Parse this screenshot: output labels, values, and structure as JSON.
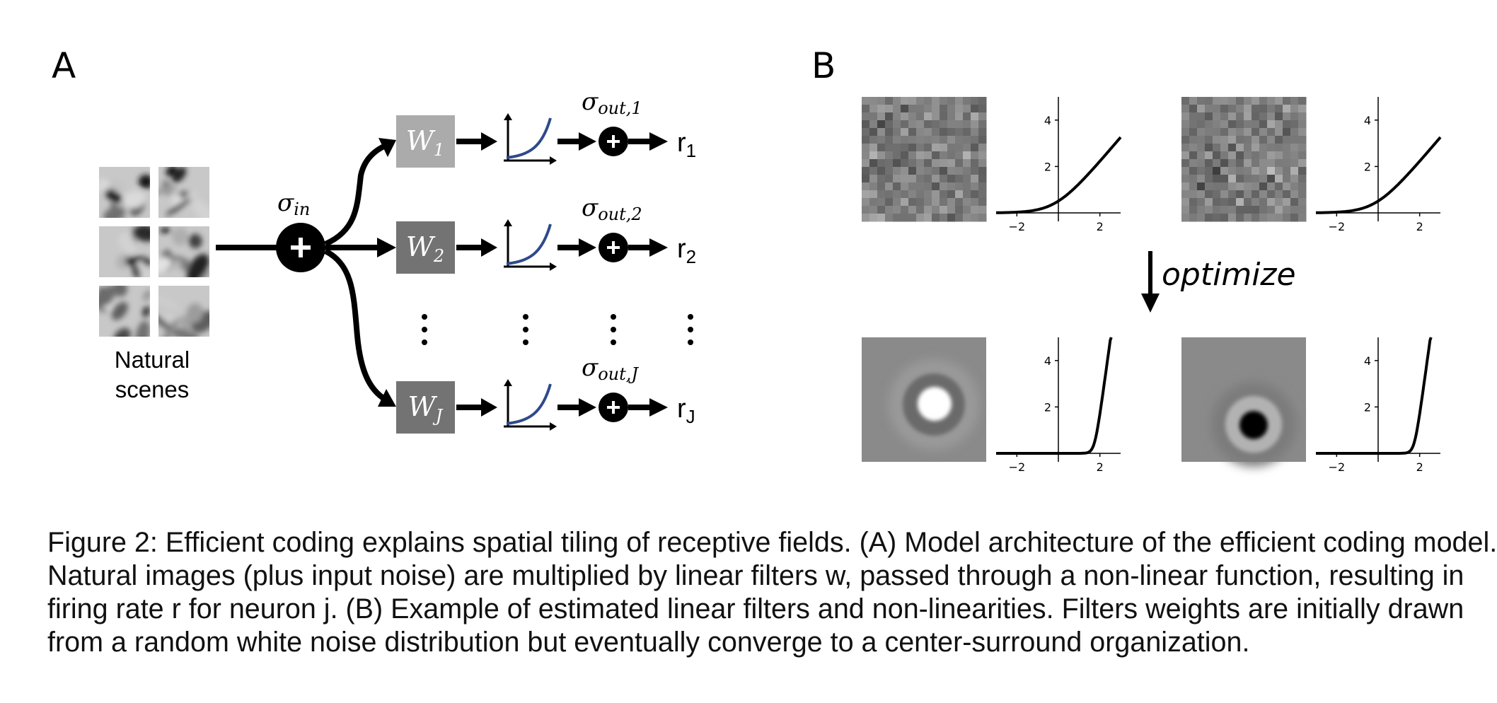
{
  "panel_a": {
    "letter": "A",
    "input_label_line1": "Natural",
    "input_label_line2": "scenes",
    "sigma_in": {
      "base": "σ",
      "sub": "in"
    },
    "plus_symbol": "+",
    "ellipsis": "⋮",
    "rows": [
      {
        "filter": {
          "base": "W",
          "sub": "1"
        },
        "sigma_out": {
          "base": "σ",
          "sub": "out,1"
        },
        "output": {
          "base": "r",
          "sub": "1"
        },
        "filter_color": "#ababab"
      },
      {
        "filter": {
          "base": "W",
          "sub": "2"
        },
        "sigma_out": {
          "base": "σ",
          "sub": "out,2"
        },
        "output": {
          "base": "r",
          "sub": "2"
        },
        "filter_color": "#737373"
      },
      {
        "filter": {
          "base": "W",
          "sub": "J"
        },
        "sigma_out": {
          "base": "σ",
          "sub": "out,J"
        },
        "output": {
          "base": "r",
          "sub": "J"
        },
        "filter_color": "#737373"
      }
    ],
    "nonlinearity_curve_color": "#2e4a8a"
  },
  "panel_b": {
    "letter": "B",
    "arrow_label": "optimize",
    "x_ticks": [
      "−2",
      "2"
    ],
    "y_ticks": [
      "4",
      "2"
    ],
    "plots": [
      {
        "row": "initial",
        "nonlinearity": "softplus"
      },
      {
        "row": "initial",
        "nonlinearity": "softplus"
      },
      {
        "row": "optimized",
        "nonlinearity": "steep rectified",
        "receptive_field": "on-center"
      },
      {
        "row": "optimized",
        "nonlinearity": "steep rectified",
        "receptive_field": "off-center"
      }
    ]
  },
  "caption": {
    "lines": [
      "Figure 2: Efficient coding explains spatial tiling of receptive fields. (A) Model architecture of the efficient coding model.",
      "Natural images (plus input noise) are multiplied by linear filters w, passed through a non-linear function, resulting in",
      "firing rate r for neuron j. (B) Example of estimated linear filters and non-linearities. Filters weights are initially drawn",
      "from a random white noise distribution but eventually converge to a center-surround organization."
    ]
  }
}
